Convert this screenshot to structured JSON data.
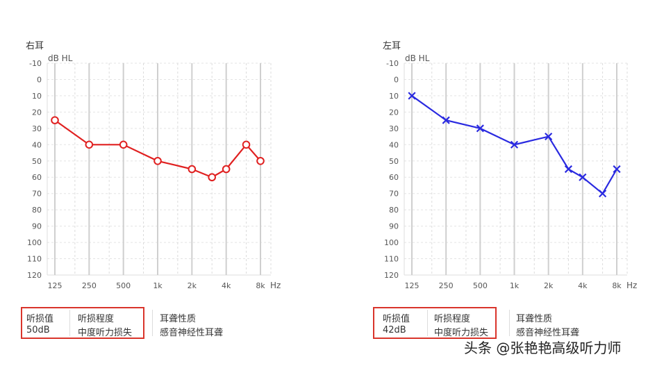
{
  "panels": [
    {
      "title": "右耳",
      "summary": {
        "hearing_value_label": "听损值",
        "hearing_value": "50dB",
        "hearing_degree_label": "听损程度",
        "hearing_degree": "中度听力损失",
        "deafness_nature_label": "耳聋性质",
        "deafness_nature": "感音神经性耳聋"
      }
    },
    {
      "title": "左耳",
      "summary": {
        "hearing_value_label": "听损值",
        "hearing_value": "42dB",
        "hearing_degree_label": "听损程度",
        "hearing_degree": "中度听力损失",
        "deafness_nature_label": "耳聋性质",
        "deafness_nature": "感音神经性耳聋"
      }
    }
  ],
  "chart_data": [
    {
      "type": "line",
      "title": "右耳",
      "ylabel": "dB HL",
      "xlabel": "Hz",
      "x_scale": "log2",
      "y_inverted": true,
      "ylim": [
        -10,
        120
      ],
      "y_ticks": [
        -10,
        0,
        10,
        20,
        30,
        40,
        50,
        60,
        70,
        80,
        90,
        100,
        110,
        120
      ],
      "x_ticks": [
        125,
        250,
        500,
        1000,
        2000,
        4000,
        8000
      ],
      "x_tick_labels": [
        "125",
        "250",
        "500",
        "1k",
        "2k",
        "4k",
        "8k"
      ],
      "grid": true,
      "marker": "circle",
      "color": "#e02020",
      "series": [
        {
          "x": [
            125,
            250,
            500,
            1000,
            2000,
            3000,
            4000,
            6000,
            8000
          ],
          "values": [
            25,
            40,
            40,
            50,
            55,
            60,
            55,
            40,
            50
          ]
        }
      ]
    },
    {
      "type": "line",
      "title": "左耳",
      "ylabel": "dB HL",
      "xlabel": "Hz",
      "x_scale": "log2",
      "y_inverted": true,
      "ylim": [
        -10,
        120
      ],
      "y_ticks": [
        -10,
        0,
        10,
        20,
        30,
        40,
        50,
        60,
        70,
        80,
        90,
        100,
        110,
        120
      ],
      "x_ticks": [
        125,
        250,
        500,
        1000,
        2000,
        4000,
        8000
      ],
      "x_tick_labels": [
        "125",
        "250",
        "500",
        "1k",
        "2k",
        "4k",
        "8k"
      ],
      "grid": true,
      "marker": "cross",
      "color": "#2a2ae0",
      "series": [
        {
          "x": [
            125,
            250,
            500,
            1000,
            2000,
            3000,
            4000,
            6000,
            8000
          ],
          "values": [
            10,
            25,
            30,
            40,
            35,
            55,
            60,
            70,
            55
          ]
        }
      ]
    }
  ],
  "watermark": "头条 @张艳艳高级听力师"
}
